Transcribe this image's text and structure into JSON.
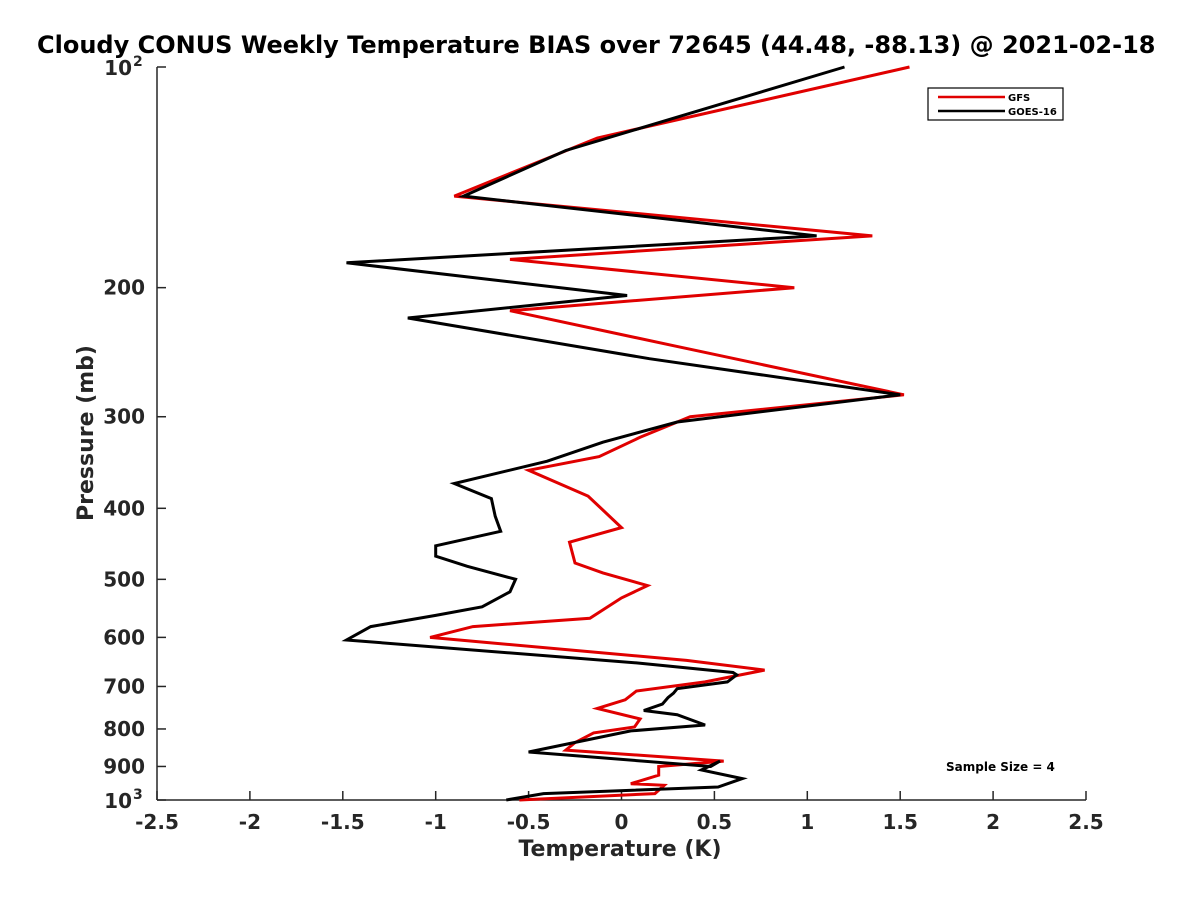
{
  "chart_data": {
    "type": "line",
    "title": "Cloudy CONUS Weekly Temperature BIAS over 72645 (44.48, -88.13) @ 2021-02-18",
    "xlabel": "Temperature (K)",
    "ylabel": "Pressure (mb)",
    "xlim": [
      -2.5,
      2.5
    ],
    "ylim": [
      1000,
      100
    ],
    "y_scale": "log",
    "grid": false,
    "legend_position": "top-right",
    "x_ticks": [
      "-2.5",
      "-2",
      "-1.5",
      "-1",
      "-0.5",
      "0",
      "0.5",
      "1",
      "1.5",
      "2",
      "2.5"
    ],
    "y_ticks": [
      {
        "value": 100,
        "base": "10",
        "exp": "2"
      },
      {
        "value": 200,
        "label": "200"
      },
      {
        "value": 300,
        "label": "300"
      },
      {
        "value": 400,
        "label": "400"
      },
      {
        "value": 500,
        "label": "500"
      },
      {
        "value": 600,
        "label": "600"
      },
      {
        "value": 700,
        "label": "700"
      },
      {
        "value": 800,
        "label": "800"
      },
      {
        "value": 900,
        "label": "900"
      },
      {
        "value": 1000,
        "base": "10",
        "exp": "3"
      }
    ],
    "annotation": "Sample Size = 4",
    "series": [
      {
        "name": "GFS",
        "color": "#e00000",
        "points": [
          [
            1.55,
            100
          ],
          [
            -0.13,
            125
          ],
          [
            -0.9,
            150
          ],
          [
            1.35,
            170
          ],
          [
            -0.6,
            183
          ],
          [
            0.93,
            200
          ],
          [
            -0.6,
            215
          ],
          [
            0.28,
            240
          ],
          [
            1.52,
            280
          ],
          [
            0.37,
            300
          ],
          [
            0.1,
            320
          ],
          [
            -0.12,
            340
          ],
          [
            -0.5,
            355
          ],
          [
            -0.18,
            385
          ],
          [
            0.0,
            425
          ],
          [
            -0.28,
            445
          ],
          [
            -0.25,
            475
          ],
          [
            -0.1,
            490
          ],
          [
            0.14,
            510
          ],
          [
            0.0,
            530
          ],
          [
            -0.17,
            565
          ],
          [
            -0.8,
            580
          ],
          [
            -1.03,
            600
          ],
          [
            0.35,
            645
          ],
          [
            0.77,
            665
          ],
          [
            0.45,
            690
          ],
          [
            0.08,
            710
          ],
          [
            0.02,
            730
          ],
          [
            -0.13,
            750
          ],
          [
            0.1,
            775
          ],
          [
            0.07,
            795
          ],
          [
            -0.15,
            810
          ],
          [
            -0.25,
            835
          ],
          [
            -0.3,
            855
          ],
          [
            0.55,
            885
          ],
          [
            0.2,
            900
          ],
          [
            0.2,
            925
          ],
          [
            0.05,
            950
          ],
          [
            0.23,
            955
          ],
          [
            0.18,
            980
          ],
          [
            -0.55,
            1000
          ]
        ]
      },
      {
        "name": "GOES-16",
        "color": "#000000",
        "points": [
          [
            1.2,
            100
          ],
          [
            -0.3,
            130
          ],
          [
            -0.85,
            150
          ],
          [
            1.05,
            170
          ],
          [
            -1.48,
            185
          ],
          [
            0.03,
            205
          ],
          [
            -1.15,
            220
          ],
          [
            0.15,
            250
          ],
          [
            1.5,
            280
          ],
          [
            0.3,
            305
          ],
          [
            -0.1,
            325
          ],
          [
            -0.4,
            345
          ],
          [
            -0.9,
            370
          ],
          [
            -0.7,
            388
          ],
          [
            -0.68,
            410
          ],
          [
            -0.65,
            430
          ],
          [
            -1.0,
            450
          ],
          [
            -1.0,
            465
          ],
          [
            -0.83,
            480
          ],
          [
            -0.57,
            500
          ],
          [
            -0.6,
            520
          ],
          [
            -0.75,
            545
          ],
          [
            -1.0,
            560
          ],
          [
            -1.35,
            580
          ],
          [
            -1.48,
            605
          ],
          [
            0.08,
            650
          ],
          [
            0.6,
            670
          ],
          [
            0.62,
            675
          ],
          [
            0.57,
            690
          ],
          [
            0.3,
            705
          ],
          [
            0.28,
            715
          ],
          [
            0.25,
            725
          ],
          [
            0.22,
            740
          ],
          [
            0.12,
            755
          ],
          [
            0.3,
            765
          ],
          [
            0.45,
            790
          ],
          [
            0.05,
            805
          ],
          [
            -0.5,
            860
          ],
          [
            0.48,
            900
          ],
          [
            0.53,
            885
          ],
          [
            0.43,
            910
          ],
          [
            0.65,
            935
          ],
          [
            0.52,
            960
          ],
          [
            -0.42,
            980
          ],
          [
            -0.62,
            1000
          ]
        ]
      }
    ]
  }
}
